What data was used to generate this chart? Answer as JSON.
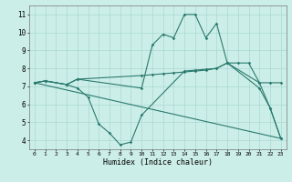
{
  "line1": {
    "x": [
      0,
      1,
      3,
      4,
      10,
      11,
      12,
      13,
      14,
      15,
      16,
      17,
      18,
      21,
      22,
      23
    ],
    "y": [
      7.2,
      7.3,
      7.1,
      7.4,
      6.9,
      9.3,
      9.9,
      9.7,
      11.0,
      11.0,
      9.7,
      10.5,
      8.3,
      6.9,
      5.8,
      4.1
    ]
  },
  "line2": {
    "x": [
      0,
      1,
      3,
      4,
      10,
      11,
      12,
      13,
      14,
      15,
      16,
      17,
      18,
      19,
      20,
      21,
      22,
      23
    ],
    "y": [
      7.2,
      7.3,
      7.1,
      7.4,
      7.6,
      7.65,
      7.7,
      7.75,
      7.8,
      7.85,
      7.9,
      8.0,
      8.3,
      8.3,
      8.3,
      7.2,
      7.2,
      7.2
    ]
  },
  "line3": {
    "x": [
      0,
      1,
      3,
      4,
      5,
      6,
      7,
      8,
      9,
      10,
      14,
      15,
      16,
      17,
      18,
      21,
      22,
      23
    ],
    "y": [
      7.2,
      7.3,
      7.1,
      6.9,
      6.4,
      4.9,
      4.4,
      3.75,
      3.9,
      5.4,
      7.85,
      7.9,
      7.95,
      8.0,
      8.3,
      7.2,
      5.8,
      4.1
    ]
  },
  "line4": {
    "x": [
      0,
      23
    ],
    "y": [
      7.2,
      4.1
    ]
  },
  "color": "#2a7a6e",
  "bg_color": "#cceee8",
  "grid_color": "#aad8d2",
  "xlabel": "Humidex (Indice chaleur)",
  "xlim": [
    -0.5,
    23.5
  ],
  "ylim": [
    3.5,
    11.5
  ],
  "yticks": [
    4,
    5,
    6,
    7,
    8,
    9,
    10,
    11
  ],
  "xticks": [
    0,
    1,
    2,
    3,
    4,
    5,
    6,
    7,
    8,
    9,
    10,
    11,
    12,
    13,
    14,
    15,
    16,
    17,
    18,
    19,
    20,
    21,
    22,
    23
  ]
}
